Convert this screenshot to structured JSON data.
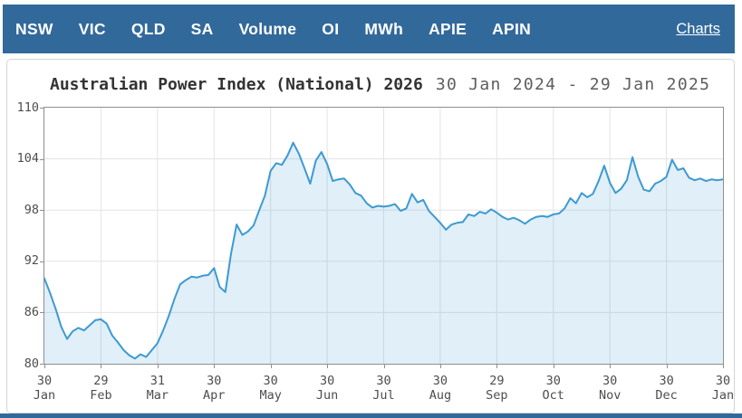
{
  "nav": {
    "items": [
      "NSW",
      "VIC",
      "QLD",
      "SA",
      "Volume",
      "OI",
      "MWh",
      "APIE",
      "APIN"
    ],
    "right_link": "Charts"
  },
  "chart": {
    "title": "Australian Power Index (National) 2026",
    "date_range": "30 Jan 2024 - 29 Jan 2025"
  },
  "colors": {
    "nav_background": "#32699b",
    "line": "#3d9ad1",
    "fill": "rgba(61,154,209,0.16)",
    "grid": "#e3e3e3",
    "plot_border": "#8f8f8f",
    "title_text": "#333333",
    "axis_text": "#4d4d4d"
  },
  "chart_data": {
    "type": "area",
    "title": "Australian Power Index (National) 2026",
    "subtitle": "30 Jan 2024 - 29 Jan 2025",
    "xlabel": "",
    "ylabel": "",
    "ylim": [
      80,
      110
    ],
    "y_ticks": [
      80,
      86,
      92,
      98,
      104,
      110
    ],
    "x_ticks": [
      [
        "30",
        "Jan"
      ],
      [
        "29",
        "Feb"
      ],
      [
        "31",
        "Mar"
      ],
      [
        "30",
        "Apr"
      ],
      [
        "30",
        "May"
      ],
      [
        "30",
        "Jun"
      ],
      [
        "30",
        "Jul"
      ],
      [
        "30",
        "Aug"
      ],
      [
        "29",
        "Sep"
      ],
      [
        "30",
        "Oct"
      ],
      [
        "30",
        "Nov"
      ],
      [
        "30",
        "Dec"
      ],
      [
        "30",
        "Jan"
      ]
    ],
    "grid": true,
    "legend": "none",
    "series": [
      {
        "name": "Australian Power Index (National) 2026",
        "values": [
          90.0,
          88.3,
          86.4,
          84.3,
          82.9,
          83.8,
          84.2,
          83.9,
          84.5,
          85.1,
          85.2,
          84.7,
          83.3,
          82.5,
          81.6,
          81.0,
          80.6,
          81.1,
          80.8,
          81.6,
          82.4,
          83.9,
          85.6,
          87.6,
          89.3,
          89.8,
          90.2,
          90.1,
          90.3,
          90.4,
          91.2,
          89.0,
          88.4,
          92.9,
          96.3,
          95.1,
          95.5,
          96.2,
          98.0,
          99.7,
          102.6,
          103.5,
          103.3,
          104.4,
          105.9,
          104.6,
          102.9,
          101.1,
          103.8,
          104.8,
          103.4,
          101.4,
          101.6,
          101.7,
          101.0,
          100.0,
          99.7,
          98.8,
          98.3,
          98.5,
          98.4,
          98.5,
          98.7,
          97.9,
          98.2,
          99.9,
          98.9,
          99.2,
          97.9,
          97.2,
          96.5,
          95.7,
          96.3,
          96.5,
          96.6,
          97.5,
          97.3,
          97.8,
          97.6,
          98.1,
          97.7,
          97.2,
          96.9,
          97.1,
          96.8,
          96.4,
          96.9,
          97.2,
          97.3,
          97.2,
          97.5,
          97.6,
          98.2,
          99.4,
          98.8,
          100.0,
          99.5,
          99.9,
          101.4,
          103.2,
          101.2,
          100.0,
          100.5,
          101.5,
          104.2,
          101.9,
          100.4,
          100.2,
          101.1,
          101.4,
          101.9,
          103.9,
          102.7,
          102.9,
          101.8,
          101.5,
          101.7,
          101.4,
          101.6,
          101.5,
          101.6
        ]
      }
    ]
  }
}
